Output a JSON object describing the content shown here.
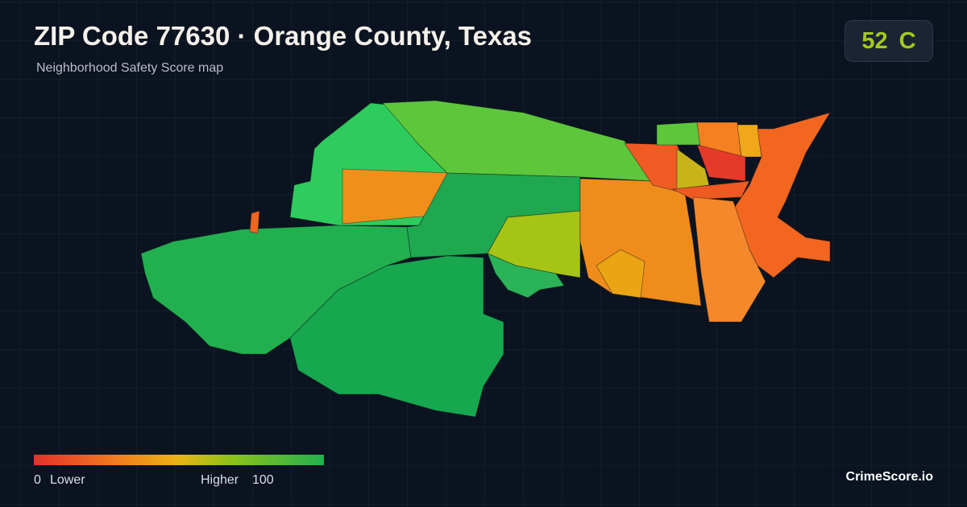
{
  "header": {
    "title": "ZIP Code 77630 · Orange County, Texas",
    "subtitle": "Neighborhood Safety Score map"
  },
  "score": {
    "value": "52",
    "grade": "C"
  },
  "legend": {
    "min": "0",
    "min_label": "Lower",
    "max_label": "Higher",
    "max": "100"
  },
  "footer": {
    "brand": "CrimeScore.io"
  }
}
